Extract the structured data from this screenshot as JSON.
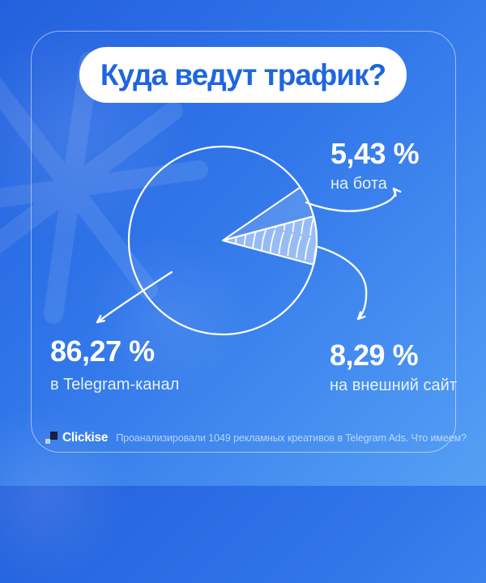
{
  "chart_data": {
    "type": "pie",
    "title": "Куда ведут трафик?",
    "unit": "%",
    "slices": [
      {
        "label": "в Telegram-канал",
        "value_pct": 86.27,
        "display": "86,27 %",
        "style": "outline-only"
      },
      {
        "label": "на бота",
        "value_pct": 5.43,
        "display": "5,43 %",
        "style": "light-fill"
      },
      {
        "label": "на внешний сайт",
        "value_pct": 8.29,
        "display": "8,29 %",
        "style": "hatched-fill"
      }
    ],
    "legend_position": "callout-labels-with-hand-drawn-arrows"
  },
  "footer": {
    "brand": "Clickise",
    "note": "Проанализировали 1049 рекламных креативов в Telegram Ads. Что имеем?"
  },
  "colors": {
    "title_text": "#1f66de",
    "background_start": "#2360dd",
    "background_end": "#55a0f5",
    "foreground": "#ffffff"
  }
}
